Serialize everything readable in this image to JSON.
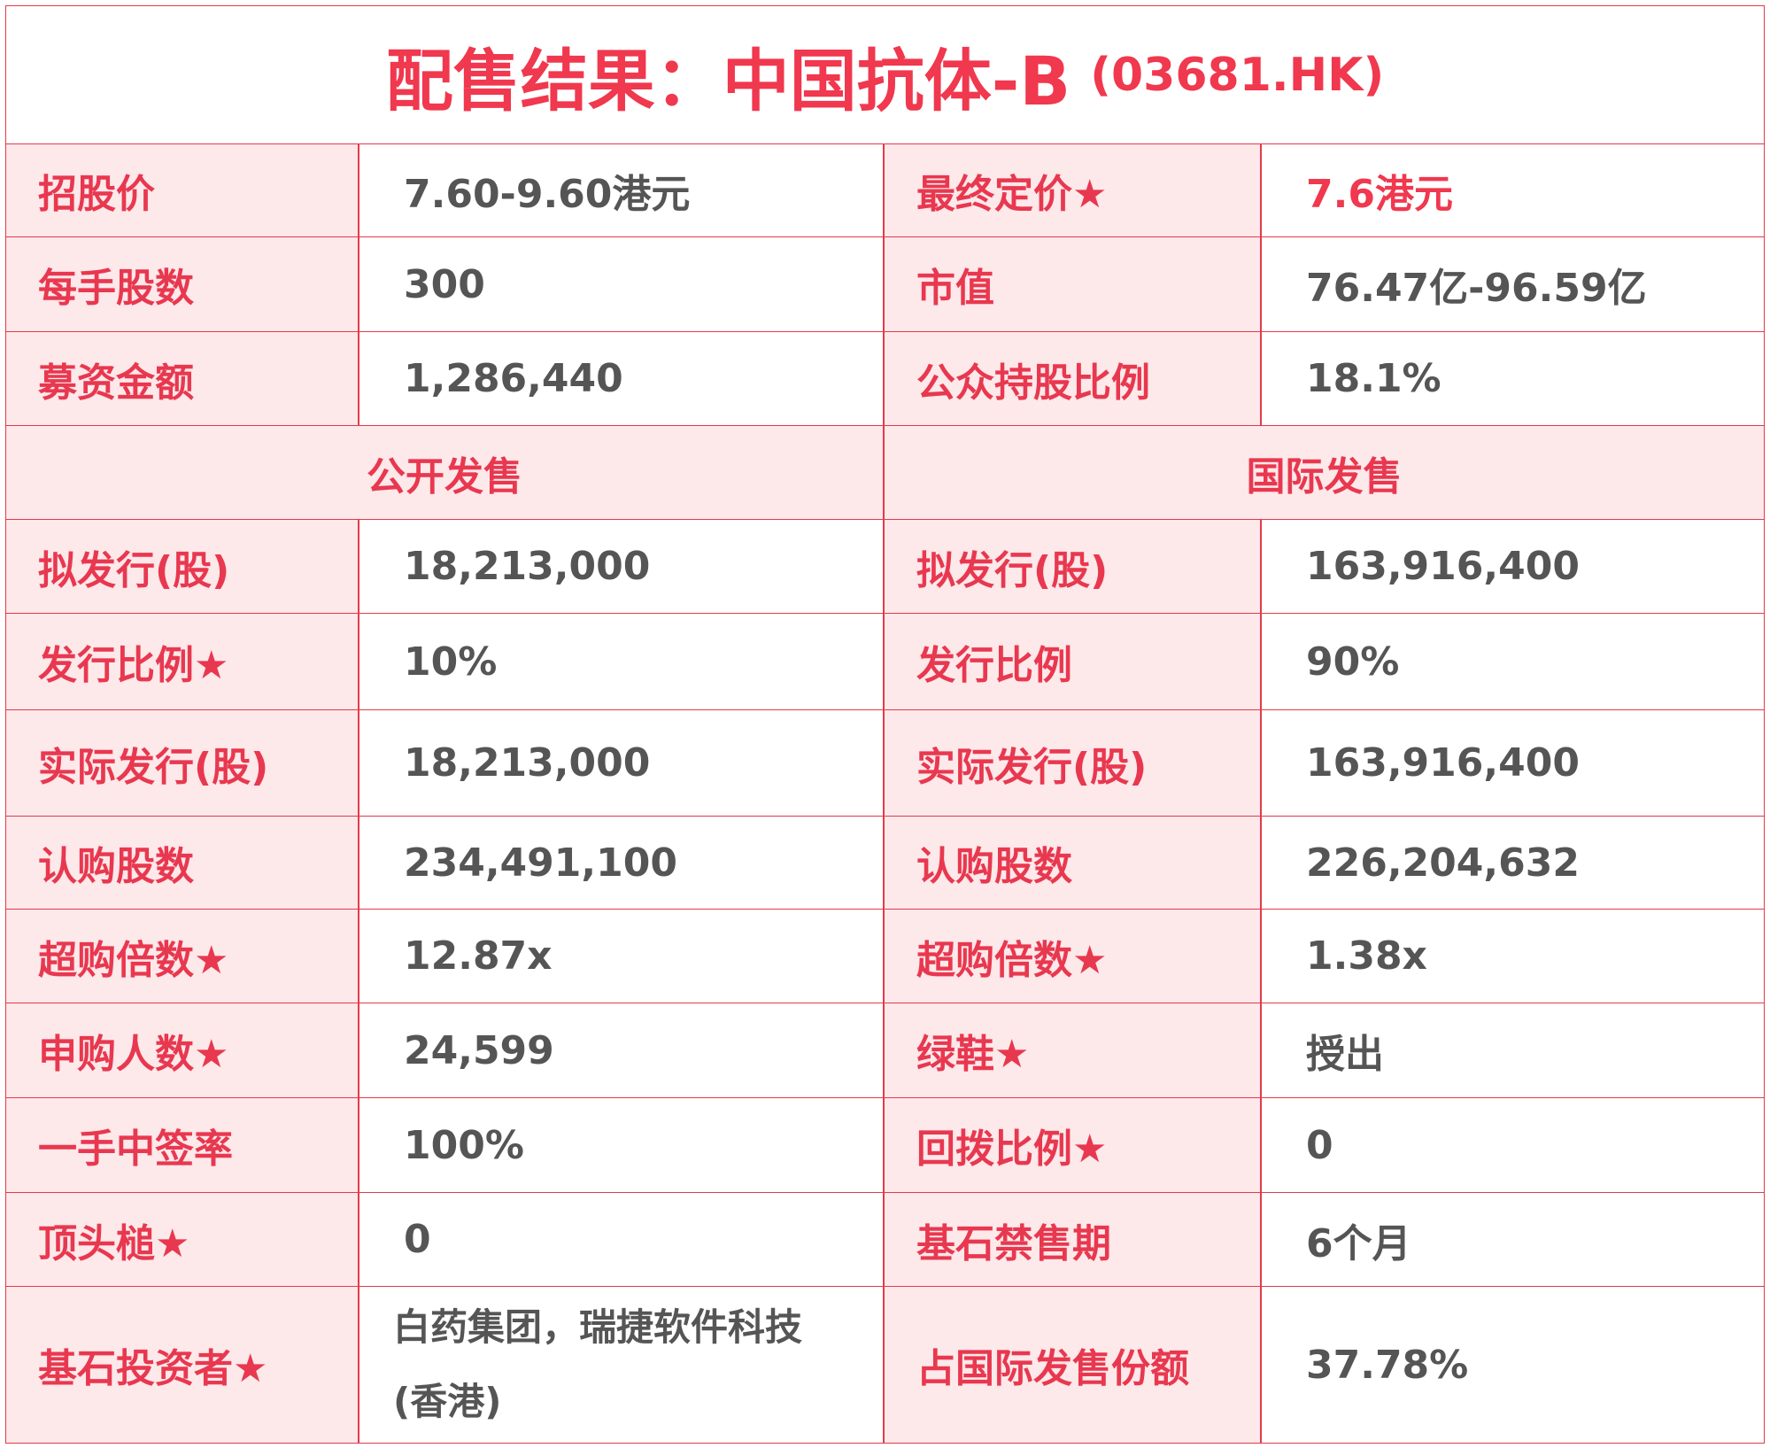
{
  "title": "配售结果：中国抗体-B",
  "title_code": "(03681.HK)",
  "top_rows": [
    [
      "招股价",
      "7.60-9.60港元",
      "最终定价★",
      "7.6港元"
    ],
    [
      "每手股数",
      "300",
      "市值",
      "76.47亿-96.59亿"
    ],
    [
      "募资金额",
      "1,286,440",
      "公众持股比例",
      "18.1%"
    ]
  ],
  "sections": [
    "公开发售",
    "国际发售"
  ],
  "rows": [
    [
      "拟发行(股)",
      "18,213,000",
      "拟发行(股)",
      "163,916,400"
    ],
    [
      "发行比例★",
      "10%",
      "发行比例",
      "90%"
    ],
    [
      "实际发行(股)",
      "18,213,000",
      "实际发行(股)",
      "163,916,400"
    ],
    [
      "认购股数",
      "234,491,100",
      "认购股数",
      "226,204,632"
    ],
    [
      "超购倍数★",
      "12.87x",
      "超购倍数★",
      "1.38x"
    ],
    [
      "申购人数★",
      "24,599",
      "绿鞋★",
      "授出"
    ],
    [
      "一手中签率",
      "100%",
      "回拨比例★",
      "0"
    ],
    [
      "顶头槌★",
      "0",
      "基石禁售期",
      "6个月"
    ],
    [
      "基石投资者★",
      "白药集团，瑞捷软件科技(香港)",
      "占国际发售份额",
      "37.78%"
    ]
  ]
}
